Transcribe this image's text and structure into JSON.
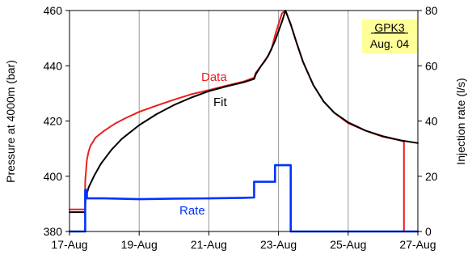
{
  "chart_data": {
    "type": "line",
    "xlabel": "",
    "x_tick_labels": [
      "17-Aug",
      "19-Aug",
      "21-Aug",
      "23-Aug",
      "25-Aug",
      "27-Aug"
    ],
    "x_tick_values": [
      0,
      2,
      4,
      6,
      8,
      10
    ],
    "xlim": [
      0,
      10
    ],
    "ylabel_left": "Pressure at 4000m (bar)",
    "ylim_left": [
      380,
      460
    ],
    "y_ticks_left": [
      "380",
      "400",
      "420",
      "440",
      "460"
    ],
    "ylabel_right": "Injection rate (l/s)",
    "ylim_right": [
      0,
      80
    ],
    "y_ticks_right": [
      "0",
      "20",
      "40",
      "60",
      "80"
    ],
    "annotation": {
      "line1": "GPK3",
      "line2": "Aug. 04",
      "background": "#ffff99"
    },
    "series": [
      {
        "name": "Data",
        "axis": "left",
        "color": "#ee1c1c",
        "x": [
          0.0,
          0.45,
          0.45,
          0.5,
          0.55,
          0.6,
          0.75,
          1.0,
          1.3,
          1.6,
          2.0,
          2.5,
          3.0,
          3.5,
          4.0,
          4.5,
          5.0,
          5.3,
          5.35,
          5.5,
          5.6,
          5.8,
          5.9,
          6.0,
          6.1,
          6.2,
          6.35,
          6.5,
          6.7,
          7.0,
          7.3,
          7.6,
          8.0,
          8.5,
          9.0,
          9.5,
          9.6,
          9.6
        ],
        "y": [
          388,
          388,
          398,
          406,
          409,
          411,
          414,
          416.5,
          419,
          421,
          423.3,
          425.6,
          427.7,
          429.7,
          431.2,
          432.8,
          434.3,
          435.7,
          437.5,
          440,
          441.5,
          446,
          451,
          455,
          459,
          460,
          455,
          449,
          441.5,
          433,
          427,
          423,
          419.2,
          416.5,
          414.3,
          413,
          412.5,
          380
        ]
      },
      {
        "name": "Fit",
        "axis": "left",
        "color": "#000000",
        "x": [
          0.0,
          0.45,
          0.46,
          0.55,
          0.7,
          0.9,
          1.2,
          1.5,
          2.0,
          2.5,
          3.0,
          3.5,
          4.0,
          4.5,
          5.0,
          5.3,
          5.35,
          5.5,
          5.7,
          5.9,
          6.1,
          6.2,
          6.35,
          6.5,
          6.7,
          7.0,
          7.3,
          7.6,
          8.0,
          8.5,
          9.0,
          9.5,
          10.0
        ],
        "y": [
          387,
          387,
          392,
          396,
          400,
          404.5,
          409.5,
          413.5,
          418.5,
          422.5,
          425.8,
          428.5,
          430.8,
          432.5,
          434,
          435.2,
          437,
          440,
          443.5,
          449,
          456,
          460,
          455,
          449,
          441.5,
          433,
          427,
          423,
          419.5,
          416.5,
          414.5,
          413,
          412
        ]
      },
      {
        "name": "Rate",
        "axis": "right",
        "color": "#0033ff",
        "x": [
          0.0,
          0.45,
          0.45,
          0.5,
          0.5,
          1.0,
          2.0,
          3.0,
          4.0,
          5.0,
          5.3,
          5.3,
          5.9,
          5.9,
          6.35,
          6.35,
          7.0,
          8.0,
          9.0,
          10.0
        ],
        "y": [
          0,
          0,
          15,
          15,
          12,
          12,
          11.7,
          11.9,
          12,
          12.2,
          12.3,
          18,
          18,
          24,
          24,
          0,
          0,
          0,
          0,
          0
        ]
      }
    ],
    "labels": {
      "data": "Data",
      "fit": "Fit",
      "rate": "Rate"
    }
  }
}
